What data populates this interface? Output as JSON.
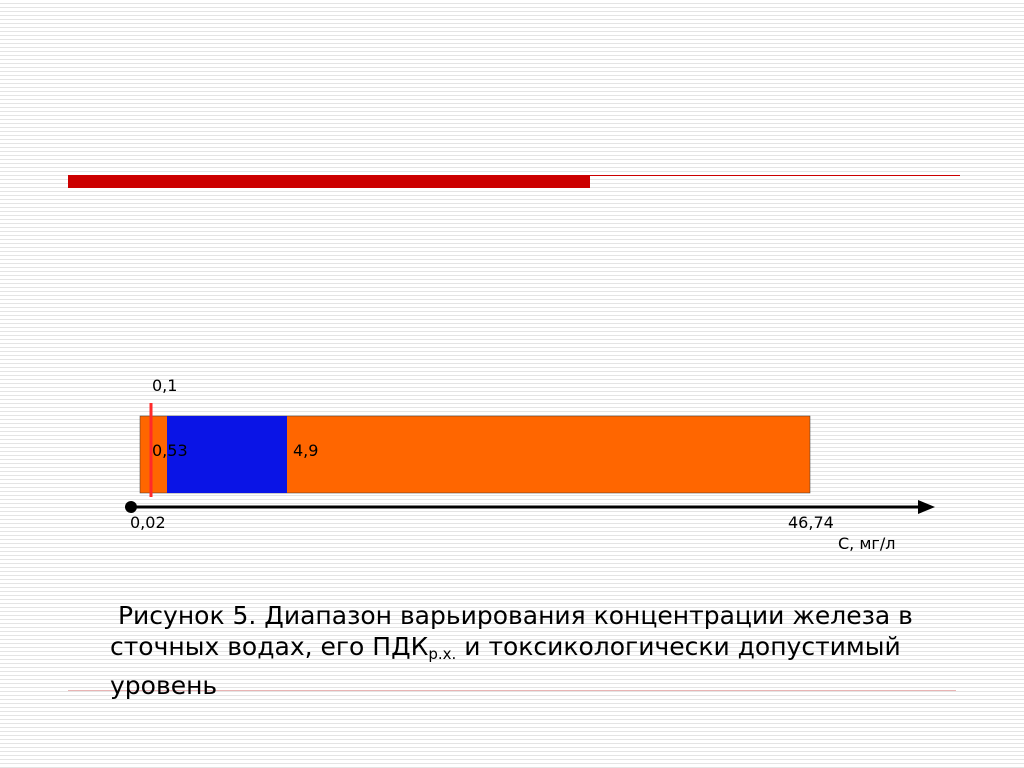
{
  "diagram": {
    "labels": {
      "pdk_rx": "0,1",
      "lower": "0,53",
      "upper": "4,9",
      "min": "0,02",
      "max": "46,74",
      "axis": "С, мг/л"
    },
    "caption": {
      "before": "Рисунок 5. Диапазон варьирования концентрации железа в сточных водах, его ПДК",
      "subscript": "р.х.",
      "after": " и токсикологически допустимый уровень"
    }
  }
}
